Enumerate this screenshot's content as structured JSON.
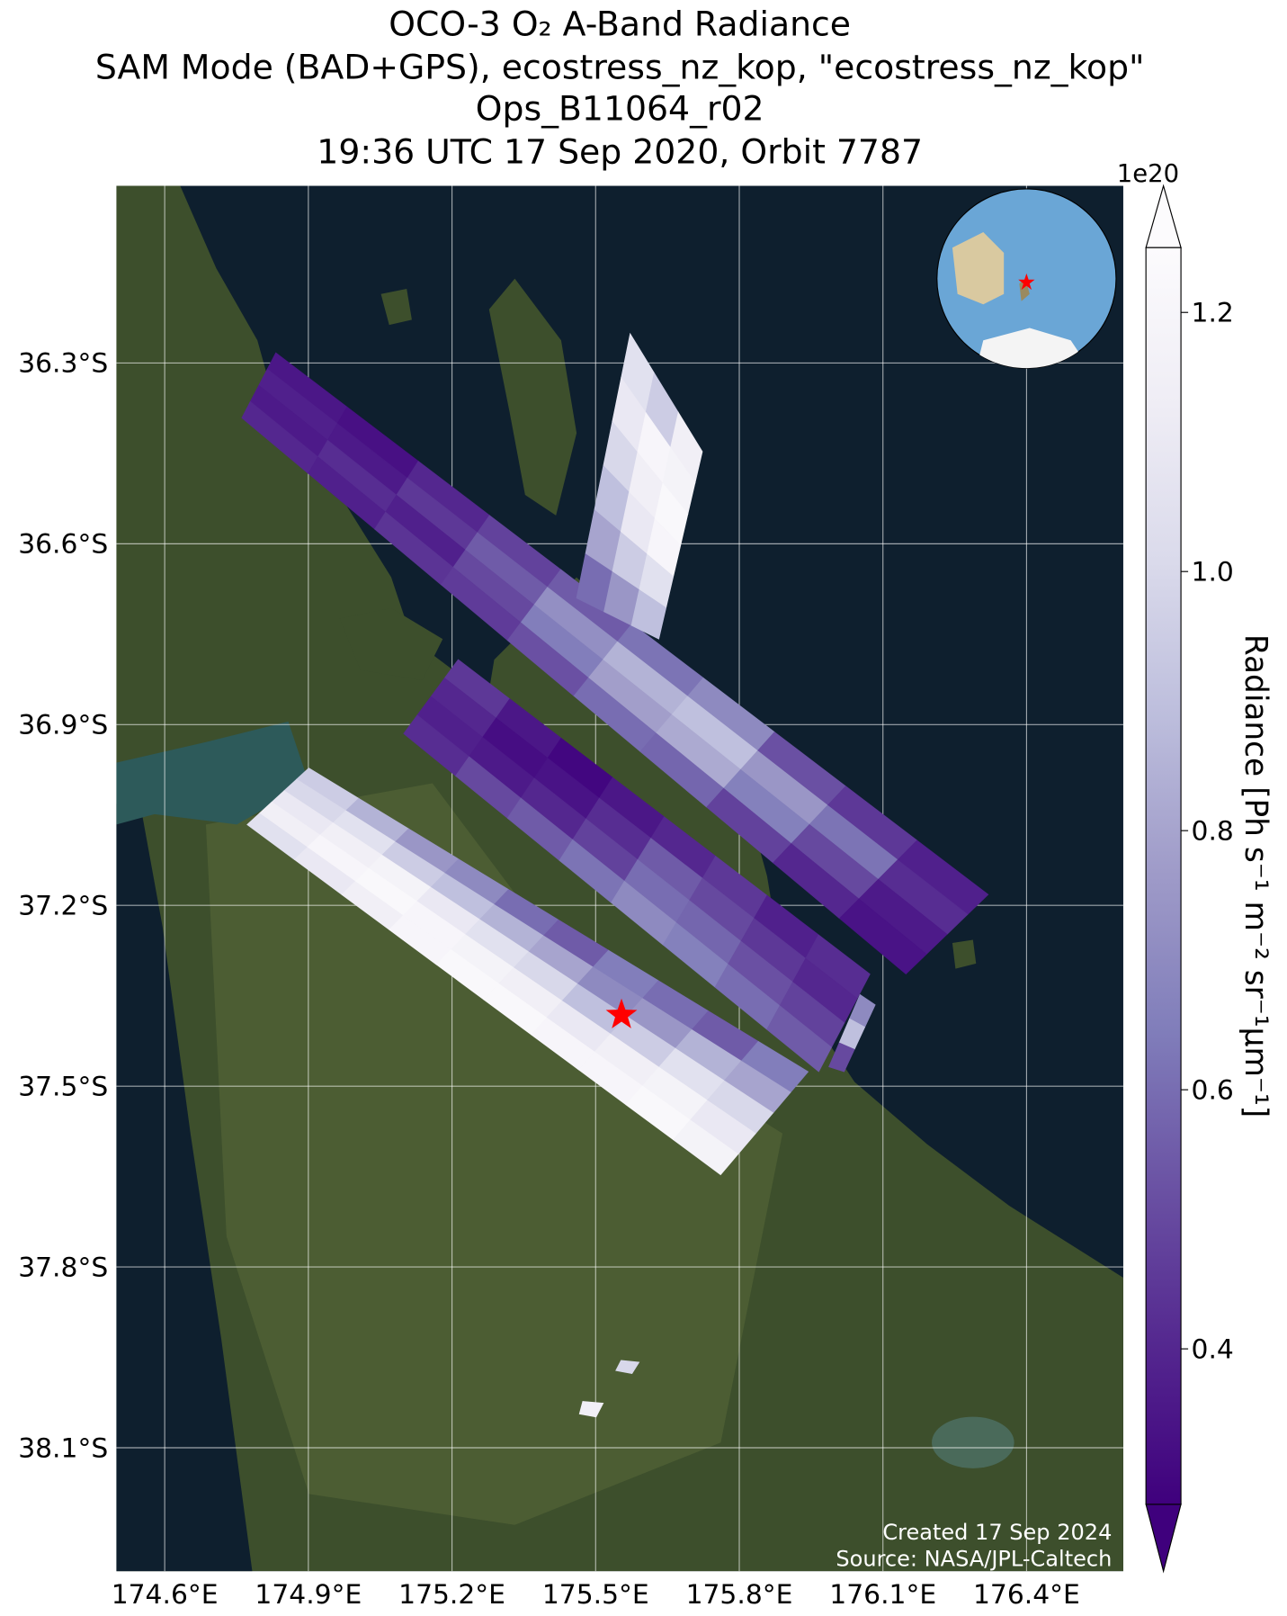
{
  "chart_data": {
    "type": "swath_map",
    "title": [
      "OCO-3 O₂ A-Band Radiance",
      "SAM Mode (BAD+GPS), ecostress_nz_kop, \"ecostress_nz_kop\"",
      "Ops_B11064_r02",
      "19:36 UTC 17 Sep 2020, Orbit 7787"
    ],
    "xlim": [
      174.499,
      176.602
    ],
    "ylim": [
      -38.305,
      -36.006
    ],
    "xticks": [
      {
        "value": 174.6,
        "label": "174.6°E"
      },
      {
        "value": 174.9,
        "label": "174.9°E"
      },
      {
        "value": 175.2,
        "label": "175.2°E"
      },
      {
        "value": 175.5,
        "label": "175.5°E"
      },
      {
        "value": 175.8,
        "label": "175.8°E"
      },
      {
        "value": 176.1,
        "label": "176.1°E"
      },
      {
        "value": 176.4,
        "label": "176.4°E"
      }
    ],
    "yticks": [
      {
        "value": -36.3,
        "label": "36.3°S"
      },
      {
        "value": -36.6,
        "label": "36.6°S"
      },
      {
        "value": -36.9,
        "label": "36.9°S"
      },
      {
        "value": -37.2,
        "label": "37.2°S"
      },
      {
        "value": -37.5,
        "label": "37.5°S"
      },
      {
        "value": -37.8,
        "label": "37.8°S"
      },
      {
        "value": -38.1,
        "label": "38.1°S"
      }
    ],
    "grid": true,
    "colorbar": {
      "label": "Radiance [Ph s⁻¹ m⁻² sr⁻¹μm⁻¹]",
      "offset_label": "1e20",
      "clim": [
        0.28,
        1.25
      ],
      "ticks": [
        0.4,
        0.6,
        0.8,
        {
          "value": 1.0,
          "label": "1.0"
        },
        1.2
      ],
      "colormap": [
        "#3f007d",
        "#54278f",
        "#6a51a3",
        "#807dba",
        "#9e9ac8",
        "#bcbddc",
        "#dadaeb",
        "#efedf5",
        "#fcfbfd"
      ]
    },
    "swaths": [
      {
        "corners": [
          [
            174.832,
            -36.283
          ],
          [
            174.761,
            -36.391
          ],
          [
            176.148,
            -37.314
          ],
          [
            176.32,
            -37.182
          ]
        ],
        "values": [
          [
            0.35,
            0.38,
            0.36,
            0.4
          ],
          [
            0.33,
            0.36,
            0.42,
            0.38
          ],
          [
            0.4,
            0.45,
            0.38,
            0.44
          ],
          [
            0.48,
            0.55,
            0.5,
            0.46
          ],
          [
            0.55,
            0.72,
            0.65,
            0.52
          ],
          [
            0.62,
            0.85,
            0.78,
            0.6
          ],
          [
            0.7,
            0.9,
            0.82,
            0.58
          ],
          [
            0.52,
            0.75,
            0.66,
            0.48
          ],
          [
            0.45,
            0.62,
            0.5,
            0.4
          ],
          [
            0.38,
            0.42,
            0.36,
            0.34
          ]
        ]
      },
      {
        "corners": [
          [
            175.572,
            -36.251
          ],
          [
            175.723,
            -36.447
          ],
          [
            175.632,
            -36.758
          ],
          [
            175.46,
            -36.69
          ]
        ],
        "values": [
          [
            1.05,
            0.95,
            1.15
          ],
          [
            1.1,
            1.2,
            1.18
          ],
          [
            1.0,
            1.15,
            1.22
          ],
          [
            0.9,
            1.1,
            1.2
          ],
          [
            0.8,
            0.95,
            1.05
          ],
          [
            0.6,
            0.75,
            0.9
          ]
        ]
      },
      {
        "corners": [
          [
            175.213,
            -36.792
          ],
          [
            175.099,
            -36.915
          ],
          [
            175.966,
            -37.476
          ],
          [
            176.073,
            -37.314
          ]
        ],
        "values": [
          [
            0.45,
            0.4,
            0.38,
            0.42
          ],
          [
            0.35,
            0.32,
            0.36,
            0.5
          ],
          [
            0.3,
            0.34,
            0.4,
            0.55
          ],
          [
            0.35,
            0.42,
            0.48,
            0.62
          ],
          [
            0.4,
            0.55,
            0.6,
            0.7
          ],
          [
            0.45,
            0.5,
            0.58,
            0.66
          ],
          [
            0.38,
            0.45,
            0.52,
            0.6
          ],
          [
            0.42,
            0.4,
            0.48,
            0.55
          ]
        ]
      },
      {
        "corners": [
          [
            174.901,
            -36.972
          ],
          [
            174.772,
            -37.066
          ],
          [
            175.761,
            -37.647
          ],
          [
            175.944,
            -37.476
          ]
        ],
        "values": [
          [
            0.95,
            1.0,
            1.1,
            1.15,
            1.05
          ],
          [
            0.85,
            1.05,
            1.15,
            1.2,
            1.1
          ],
          [
            0.75,
            0.95,
            1.18,
            1.22,
            1.15
          ],
          [
            0.7,
            0.9,
            1.1,
            1.2,
            1.2
          ],
          [
            0.6,
            0.85,
            1.05,
            1.18,
            1.22
          ],
          [
            0.55,
            0.8,
            1.0,
            1.15,
            1.22
          ],
          [
            0.65,
            0.7,
            0.9,
            1.1,
            1.2
          ],
          [
            0.6,
            0.75,
            0.95,
            1.15,
            1.2
          ],
          [
            0.55,
            0.85,
            1.05,
            1.18,
            1.22
          ],
          [
            0.65,
            0.8,
            1.0,
            1.1,
            1.18
          ]
        ]
      },
      {
        "corners": [
          [
            176.052,
            -37.348
          ],
          [
            176.084,
            -37.365
          ],
          [
            176.019,
            -37.476
          ],
          [
            175.987,
            -37.468
          ]
        ],
        "values": [
          [
            0.7
          ],
          [
            0.9
          ],
          [
            0.5
          ]
        ]
      },
      {
        "corners": [
          [
            175.553,
            -37.955
          ],
          [
            175.591,
            -37.958
          ],
          [
            175.576,
            -37.977
          ],
          [
            175.542,
            -37.972
          ]
        ],
        "values": [
          [
            1.0
          ]
        ]
      },
      {
        "corners": [
          [
            175.473,
            -38.023
          ],
          [
            175.516,
            -38.026
          ],
          [
            175.501,
            -38.049
          ],
          [
            175.466,
            -38.044
          ]
        ],
        "values": [
          [
            1.15
          ]
        ]
      }
    ],
    "target": {
      "lon": 175.554,
      "lat": -37.382,
      "color": "#ff0000"
    },
    "annotations": [
      "Created 17 Sep 2024",
      "Source: NASA/JPL-Caltech"
    ]
  }
}
